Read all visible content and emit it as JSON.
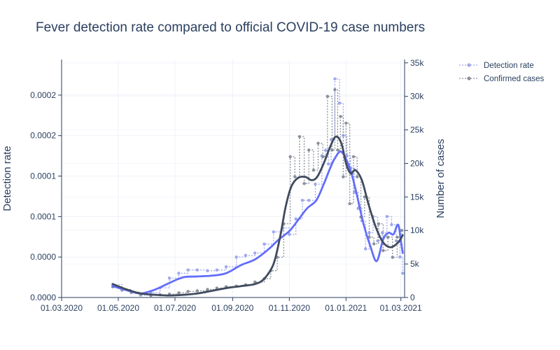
{
  "chart_data": {
    "type": "line",
    "title": "Fever detection rate compared to official COVID-19 case numbers",
    "x_axis": {
      "tick_labels": [
        "01.03.2020",
        "01.05.2020",
        "01.07.2020",
        "01.09.2020",
        "01.11.2020",
        "01.01.2021",
        "01.03.2021"
      ],
      "tick_dates": [
        "2020-03-01",
        "2020-05-01",
        "2020-07-01",
        "2020-09-01",
        "2020-11-01",
        "2021-01-01",
        "2021-03-01"
      ],
      "range": [
        "2020-03-01",
        "2021-03-05"
      ]
    },
    "y_left": {
      "label": "Detection rate",
      "range": [
        0,
        0.000294
      ],
      "ticks": [
        0,
        5e-05,
        0.0001,
        0.00015,
        0.0002,
        0.00025
      ],
      "tick_labels": [
        "0.0000",
        "0.0000",
        "0.0001",
        "0.0001",
        "0.0002",
        "0.0002"
      ]
    },
    "y_right": {
      "label": "Number of cases",
      "range": [
        0,
        35500
      ],
      "ticks": [
        0,
        5000,
        10000,
        15000,
        20000,
        25000,
        30000,
        35000
      ],
      "tick_labels": [
        "0",
        "5k",
        "10k",
        "15k",
        "20k",
        "25k",
        "30k",
        "35k"
      ]
    },
    "grid": true,
    "legend_position": "top-right, outside plot",
    "colors": {
      "detection_raw": "#9fa8ee",
      "detection_smooth": "#636efa",
      "cases_raw": "#8a8f99",
      "cases_smooth": "#404b5e",
      "axis": "#2a3f5f",
      "grid": "#eef1f8"
    },
    "series": [
      {
        "name": "Detection rate",
        "axis": "left",
        "style": "dotted-markers",
        "x": [
          "2020-04-25",
          "2020-05-05",
          "2020-05-15",
          "2020-05-25",
          "2020-06-05",
          "2020-06-15",
          "2020-06-25",
          "2020-07-05",
          "2020-07-15",
          "2020-07-25",
          "2020-08-05",
          "2020-08-15",
          "2020-08-25",
          "2020-09-05",
          "2020-09-15",
          "2020-09-25",
          "2020-10-05",
          "2020-10-15",
          "2020-10-25",
          "2020-11-01",
          "2020-11-08",
          "2020-11-15",
          "2020-11-22",
          "2020-11-29",
          "2020-12-06",
          "2020-12-10",
          "2020-12-13",
          "2020-12-16",
          "2020-12-20",
          "2020-12-25",
          "2020-12-29",
          "2021-01-02",
          "2021-01-06",
          "2021-01-10",
          "2021-01-14",
          "2021-01-18",
          "2021-01-22",
          "2021-01-26",
          "2021-01-30",
          "2021-02-04",
          "2021-02-09",
          "2021-02-14",
          "2021-02-19",
          "2021-02-24",
          "2021-02-28",
          "2021-03-03"
        ],
        "y": [
          1.6e-05,
          9e-06,
          6e-06,
          3e-06,
          6e-06,
          1.2e-05,
          2.4e-05,
          3e-05,
          3.4e-05,
          3.4e-05,
          3.3e-05,
          3.4e-05,
          3.8e-05,
          5e-05,
          5.2e-05,
          5.5e-05,
          6.6e-05,
          8.1e-05,
          8.6e-05,
          7.8e-05,
          9.7e-05,
          0.00012,
          0.00012,
          0.00014,
          0.000175,
          0.000182,
          0.000165,
          0.000195,
          0.00027,
          0.00024,
          0.0002,
          0.000175,
          0.00016,
          0.00013,
          0.00011,
          9.5e-05,
          6e-05,
          8e-05,
          0.0001,
          7e-05,
          8e-05,
          0.0001,
          9e-05,
          7e-05,
          5e-05,
          3e-05
        ]
      },
      {
        "name": "Confirmed cases",
        "axis": "right",
        "style": "dotted-markers",
        "x": [
          "2020-04-25",
          "2020-05-05",
          "2020-05-15",
          "2020-05-25",
          "2020-06-05",
          "2020-06-15",
          "2020-06-25",
          "2020-07-05",
          "2020-07-15",
          "2020-07-25",
          "2020-08-05",
          "2020-08-15",
          "2020-08-25",
          "2020-09-05",
          "2020-09-15",
          "2020-09-25",
          "2020-10-05",
          "2020-10-12",
          "2020-10-19",
          "2020-10-26",
          "2020-11-02",
          "2020-11-07",
          "2020-11-12",
          "2020-11-17",
          "2020-11-22",
          "2020-11-27",
          "2020-12-02",
          "2020-12-07",
          "2020-12-12",
          "2020-12-17",
          "2020-12-20",
          "2020-12-23",
          "2020-12-26",
          "2020-12-29",
          "2021-01-01",
          "2021-01-05",
          "2021-01-09",
          "2021-01-13",
          "2021-01-17",
          "2021-01-21",
          "2021-01-26",
          "2021-01-31",
          "2021-02-05",
          "2021-02-10",
          "2021-02-15",
          "2021-02-20",
          "2021-02-25",
          "2021-03-02"
        ],
        "y": [
          1600,
          1200,
          800,
          500,
          300,
          400,
          500,
          700,
          900,
          1000,
          1200,
          1400,
          1600,
          1700,
          1900,
          2300,
          2800,
          4000,
          6000,
          11000,
          21000,
          18000,
          24000,
          17000,
          22000,
          19000,
          23000,
          21000,
          30000,
          22000,
          31000,
          22000,
          27000,
          18000,
          26000,
          14000,
          21000,
          18000,
          12000,
          15000,
          9000,
          8000,
          11000,
          7000,
          9000,
          6000,
          9000,
          10000
        ]
      },
      {
        "name": "",
        "axis": "left",
        "style": "smooth",
        "x": [
          "2020-04-25",
          "2020-05-10",
          "2020-05-25",
          "2020-06-10",
          "2020-06-25",
          "2020-07-10",
          "2020-07-25",
          "2020-08-10",
          "2020-08-25",
          "2020-09-10",
          "2020-09-25",
          "2020-10-10",
          "2020-10-20",
          "2020-11-01",
          "2020-11-10",
          "2020-11-20",
          "2020-11-30",
          "2020-12-08",
          "2020-12-15",
          "2020-12-20",
          "2020-12-27",
          "2021-01-05",
          "2021-01-12",
          "2021-01-20",
          "2021-01-27",
          "2021-02-03",
          "2021-02-10",
          "2021-02-16",
          "2021-02-21",
          "2021-02-26",
          "2021-03-01",
          "2021-03-03"
        ],
        "y": [
          1.4e-05,
          9e-06,
          5e-06,
          1e-05,
          1.8e-05,
          2.5e-05,
          2.6e-05,
          2.7e-05,
          3e-05,
          4e-05,
          4.7e-05,
          6e-05,
          7.1e-05,
          8.2e-05,
          9.5e-05,
          0.00011,
          0.00012,
          0.00014,
          0.00016,
          0.000172,
          0.00018,
          0.00016,
          0.00013,
          9e-05,
          6.4e-05,
          4.5e-05,
          7.2e-05,
          8e-05,
          7.8e-05,
          9e-05,
          7e-05,
          5.5e-05
        ]
      },
      {
        "name": "",
        "axis": "right",
        "style": "smooth",
        "x": [
          "2020-04-25",
          "2020-05-10",
          "2020-05-25",
          "2020-06-10",
          "2020-06-25",
          "2020-07-10",
          "2020-07-25",
          "2020-08-10",
          "2020-08-25",
          "2020-09-10",
          "2020-09-25",
          "2020-10-05",
          "2020-10-15",
          "2020-10-22",
          "2020-10-28",
          "2020-11-03",
          "2020-11-10",
          "2020-11-18",
          "2020-11-25",
          "2020-12-01",
          "2020-12-08",
          "2020-12-15",
          "2020-12-21",
          "2020-12-27",
          "2021-01-01",
          "2021-01-06",
          "2021-01-11",
          "2021-01-18",
          "2021-01-25",
          "2021-02-02",
          "2021-02-10",
          "2021-02-18",
          "2021-02-26",
          "2021-03-03"
        ],
        "y": [
          2000,
          1200,
          600,
          400,
          300,
          400,
          600,
          1000,
          1400,
          1700,
          2000,
          2800,
          5000,
          9000,
          13500,
          16500,
          17800,
          18000,
          17500,
          18000,
          20000,
          22500,
          24000,
          23000,
          20000,
          18500,
          19000,
          17500,
          14000,
          10500,
          8200,
          7500,
          8200,
          9300
        ]
      }
    ]
  }
}
